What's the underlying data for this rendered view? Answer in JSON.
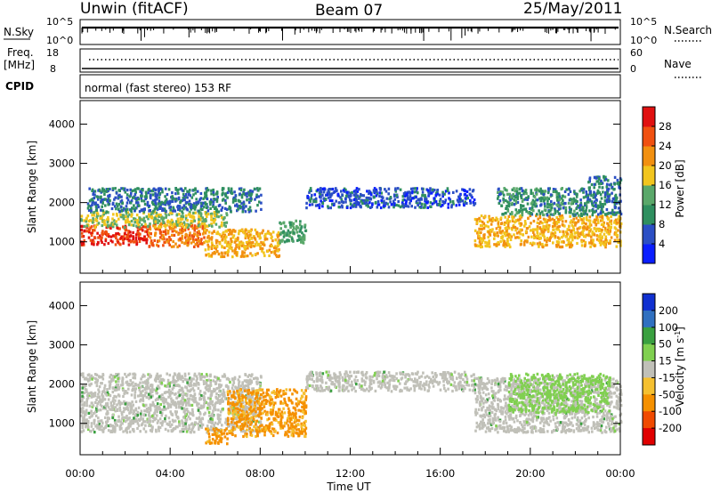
{
  "header": {
    "station": "Unwin (fitACF)",
    "beam": "Beam 07",
    "date": "25/May/2011"
  },
  "strip_panels": {
    "nsky": {
      "label": "N.Sky",
      "ticks": [
        "10^5",
        "10^0"
      ]
    },
    "nsearch": {
      "label": "N.Search",
      "ticks": [
        "10^5",
        "10^0"
      ]
    },
    "freq": {
      "label_line1": "Freq.",
      "label_line2": "[MHz]",
      "ticks": [
        "18",
        "8"
      ]
    },
    "nave": {
      "label": "Nave",
      "ticks": [
        "60",
        "0"
      ]
    },
    "cpid": {
      "label": "CPID",
      "mode": "normal (fast stereo) 153 RF"
    }
  },
  "colors": {
    "power_scale": [
      "#0a1eff",
      "#2b4fc4",
      "#2f8f5f",
      "#5aa86a",
      "#f2c51e",
      "#f29010",
      "#f05010",
      "#e01010"
    ],
    "velocity_scale": [
      "#e00000",
      "#f04a00",
      "#f59000",
      "#f5c030",
      "#c0c0b8",
      "#80d050",
      "#3aa040",
      "#3070c0",
      "#1030d0"
    ],
    "ground_scatter": "#c0c0b8"
  },
  "chart_data": [
    {
      "type": "heatmap",
      "panel": "power",
      "xlabel": "",
      "ylabel": "Slant Range [km]",
      "x_range_hours": [
        0,
        24
      ],
      "x_ticks": [
        "00:00",
        "04:00",
        "08:00",
        "12:00",
        "16:00",
        "20:00",
        "00:00"
      ],
      "ylim": [
        200,
        4600
      ],
      "y_ticks": [
        1000,
        2000,
        3000,
        4000
      ],
      "colorbar": {
        "label": "Power [dB]",
        "range": [
          0,
          32
        ],
        "ticks": [
          4,
          8,
          12,
          16,
          20,
          24,
          28
        ]
      },
      "regions": [
        {
          "t": [
            0.0,
            3.0
          ],
          "r": [
            950,
            1450
          ],
          "level": 28
        },
        {
          "t": [
            3.0,
            5.5
          ],
          "r": [
            900,
            1500
          ],
          "level": 24
        },
        {
          "t": [
            0.0,
            6.5
          ],
          "r": [
            1400,
            1800
          ],
          "level": 16
        },
        {
          "t": [
            0.3,
            8.0
          ],
          "r": [
            1800,
            2400
          ],
          "level": 8
        },
        {
          "t": [
            5.5,
            8.8
          ],
          "r": [
            650,
            1350
          ],
          "level": 20
        },
        {
          "t": [
            8.8,
            10.0
          ],
          "r": [
            1000,
            1600
          ],
          "level": 12
        },
        {
          "t": [
            10.0,
            17.5
          ],
          "r": [
            1900,
            2400
          ],
          "level": 6
        },
        {
          "t": [
            17.5,
            24.0
          ],
          "r": [
            900,
            1700
          ],
          "level": 20
        },
        {
          "t": [
            18.5,
            22.5
          ],
          "r": [
            1700,
            2400
          ],
          "level": 10
        },
        {
          "t": [
            22.5,
            24.0
          ],
          "r": [
            1700,
            2700
          ],
          "level": 8
        }
      ]
    },
    {
      "type": "heatmap",
      "panel": "velocity",
      "xlabel": "Time UT",
      "ylabel": "Slant Range [km]",
      "x_range_hours": [
        0,
        24
      ],
      "x_ticks": [
        "00:00",
        "04:00",
        "08:00",
        "12:00",
        "16:00",
        "20:00",
        "00:00"
      ],
      "ylim": [
        200,
        4600
      ],
      "y_ticks": [
        1000,
        2000,
        3000,
        4000
      ],
      "colorbar": {
        "label": "Velocity [m s",
        "label_sup": "-1",
        "label_end": "]",
        "range": [
          -250,
          250
        ],
        "ticks": [
          200,
          100,
          50,
          15,
          -15,
          -50,
          -100,
          -200
        ]
      },
      "regions": [
        {
          "t": [
            0.0,
            8.0
          ],
          "r": [
            800,
            2300
          ],
          "velocity": 0,
          "ground_scatter": true
        },
        {
          "t": [
            6.5,
            10.0
          ],
          "r": [
            700,
            1900
          ],
          "velocity": -60
        },
        {
          "t": [
            5.5,
            6.5
          ],
          "r": [
            500,
            900
          ],
          "velocity": -60
        },
        {
          "t": [
            10.0,
            17.5
          ],
          "r": [
            1850,
            2350
          ],
          "velocity": 0,
          "ground_scatter": true
        },
        {
          "t": [
            17.5,
            24.0
          ],
          "r": [
            800,
            2200
          ],
          "velocity": 0,
          "ground_scatter": true
        },
        {
          "t": [
            19.0,
            23.5
          ],
          "r": [
            1300,
            2300
          ],
          "velocity": 30
        }
      ]
    }
  ]
}
